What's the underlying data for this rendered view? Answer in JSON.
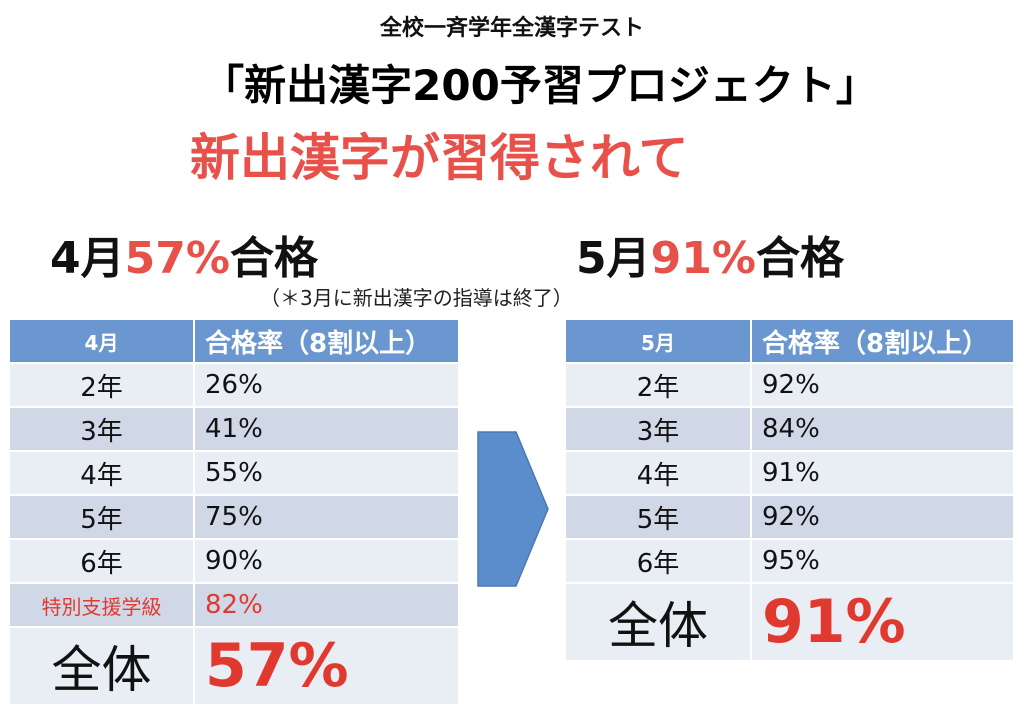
{
  "subtitle": "全校一斉学年全漢字テスト",
  "title": "「新出漢字200予習プロジェクト」",
  "headline": "新出漢字が習得されて",
  "april_summary": {
    "month": "4月",
    "pct": "57%",
    "suffix": "合格"
  },
  "may_summary": {
    "month": "5月",
    "pct": "91%",
    "suffix": "合格"
  },
  "note": "（＊3月に新出漢字の指導は終了）",
  "april_table": {
    "headers": [
      "4月",
      "合格率（8割以上）"
    ],
    "rows": [
      [
        "2年",
        "26%"
      ],
      [
        "3年",
        "41%"
      ],
      [
        "4年",
        "55%"
      ],
      [
        "5年",
        "75%"
      ],
      [
        "6年",
        "90%"
      ],
      [
        "特別支援学級",
        "82%"
      ]
    ],
    "total": [
      "全体",
      "57%"
    ]
  },
  "may_table": {
    "headers": [
      "5月",
      "合格率（8割以上）"
    ],
    "rows": [
      [
        "2年",
        "92%"
      ],
      [
        "3年",
        "84%"
      ],
      [
        "4年",
        "91%"
      ],
      [
        "5年",
        "92%"
      ],
      [
        "6年",
        "95%"
      ]
    ],
    "total": [
      "全体",
      "91%"
    ]
  },
  "colors": {
    "accent_red": "#e8504a",
    "header_blue": "#6a97cf",
    "arrow_blue": "#5b8ccc"
  },
  "icons": {
    "arrow": "right-arrow-icon"
  }
}
